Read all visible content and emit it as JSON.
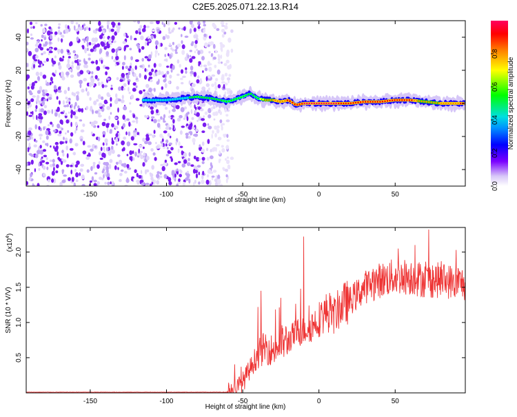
{
  "title": "C2E5.2025.071.22.13.R14",
  "chart_data": [
    {
      "type": "heatmap",
      "name": "spectrogram",
      "xlabel": "Height of straight line (km)",
      "ylabel": "Frequency (Hz)",
      "xlim": [
        -192,
        96
      ],
      "ylim": [
        -50,
        50
      ],
      "x_ticks": [
        -150,
        -100,
        -50,
        0,
        50
      ],
      "x_tick_labels": [
        "-150",
        "-100",
        "-50",
        "0",
        "50"
      ],
      "y_ticks": [
        -40,
        -20,
        0,
        20,
        40
      ],
      "y_tick_labels": [
        "-40",
        "-20",
        "0",
        "20",
        "40"
      ],
      "colorbar": {
        "label": "Normalized spectral amplitude",
        "range": [
          0,
          1
        ],
        "ticks": [
          0.0,
          0.2,
          0.4,
          0.6,
          0.8
        ],
        "tick_labels": [
          "0.0",
          "0.2",
          "0.4",
          "0.6",
          "0.8"
        ]
      },
      "noise_region_km": [
        -192,
        -65
      ],
      "signal_track": {
        "x": [
          -115,
          -100,
          -90,
          -80,
          -70,
          -60,
          -50,
          -45,
          -40,
          -35,
          -30,
          -25,
          -20,
          -15,
          -10,
          -5,
          0,
          10,
          20,
          30,
          40,
          50,
          60,
          70,
          80,
          96
        ],
        "freq": [
          2,
          2,
          3,
          4,
          3,
          1,
          4,
          6,
          3,
          2,
          2,
          1,
          2,
          -1,
          0,
          0,
          0,
          0,
          0,
          1,
          1,
          2,
          2,
          1,
          0,
          0
        ],
        "amplitude": [
          0.45,
          0.45,
          0.4,
          0.55,
          0.5,
          0.55,
          0.6,
          0.5,
          0.55,
          0.75,
          0.8,
          0.8,
          0.85,
          0.85,
          0.95,
          0.95,
          0.95,
          0.95,
          0.9,
          0.85,
          0.85,
          0.9,
          0.85,
          0.75,
          0.8,
          0.85
        ]
      }
    },
    {
      "type": "line",
      "name": "snr",
      "xlabel": "Height of straight line (km)",
      "ylabel": "SNR (10 * V/V)",
      "multiplier_label": "(x10",
      "multiplier_exp": "4",
      "multiplier_close": ")",
      "xlim": [
        -192,
        96
      ],
      "ylim": [
        0,
        2.35
      ],
      "x_ticks": [
        -150,
        -100,
        -50,
        0,
        50
      ],
      "x_tick_labels": [
        "-150",
        "-100",
        "-50",
        "0",
        "50"
      ],
      "y_ticks": [
        0.5,
        1.0,
        1.5,
        2.0
      ],
      "y_tick_labels": [
        "0.5",
        "1.0",
        "1.5",
        "2.0"
      ],
      "color": "#ee3333",
      "trend": {
        "x": [
          -192,
          -60,
          -55,
          -50,
          -45,
          -40,
          -35,
          -30,
          -25,
          -20,
          -15,
          -10,
          -5,
          0,
          5,
          10,
          15,
          20,
          25,
          30,
          40,
          50,
          60,
          70,
          80,
          96
        ],
        "y": [
          0.01,
          0.01,
          0.04,
          0.15,
          0.35,
          0.55,
          0.65,
          0.6,
          0.7,
          0.75,
          0.85,
          0.9,
          0.95,
          1.05,
          1.15,
          1.1,
          1.25,
          1.3,
          1.4,
          1.5,
          1.6,
          1.65,
          1.65,
          1.6,
          1.6,
          1.55
        ]
      },
      "spikes": [
        {
          "x": -10,
          "y": 2.22
        },
        {
          "x": 72,
          "y": 2.32
        },
        {
          "x": -38,
          "y": 1.45
        },
        {
          "x": -25,
          "y": 1.35
        },
        {
          "x": -12,
          "y": 1.48
        },
        {
          "x": 52,
          "y": 2.05
        },
        {
          "x": 63,
          "y": 2.1
        },
        {
          "x": 90,
          "y": 2.03
        }
      ]
    }
  ]
}
